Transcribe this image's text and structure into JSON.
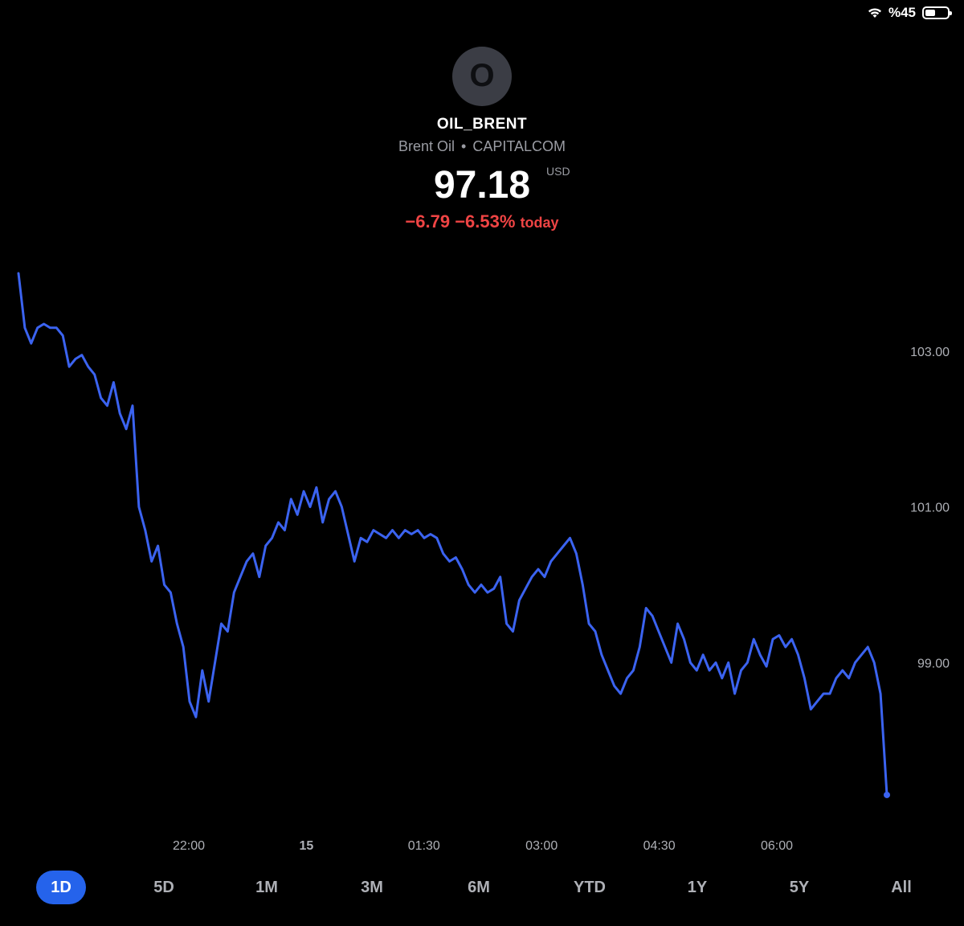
{
  "status_bar": {
    "battery": "%45",
    "battery_level": 0.45
  },
  "header": {
    "logo_letter": "O",
    "symbol": "OIL_BRENT",
    "name": "Brent Oil",
    "exchange": "CAPITALCOM",
    "price": "97.18",
    "currency": "USD",
    "change_abs": "−6.79",
    "change_pct": "−6.53%",
    "change_label": "today"
  },
  "colors": {
    "line": "#3b63f0",
    "negative": "#ef4444",
    "active_range": "#2563eb"
  },
  "chart_data": {
    "type": "line",
    "y_ticks": [
      "103.00",
      "101.00",
      "99.00"
    ],
    "x_ticks": [
      "22:00",
      "15",
      "01:30",
      "03:00",
      "04:30",
      "06:00"
    ],
    "ylim": [
      97.0,
      104.0
    ],
    "series": [
      {
        "values": [
          104.0,
          103.3,
          103.1,
          103.3,
          103.35,
          103.3,
          103.3,
          103.2,
          102.8,
          102.9,
          102.95,
          102.8,
          102.7,
          102.4,
          102.3,
          102.6,
          102.2,
          102.0,
          102.3,
          101.0,
          100.7,
          100.3,
          100.5,
          100.0,
          99.9,
          99.5,
          99.2,
          98.5,
          98.3,
          98.9,
          98.5,
          99.0,
          99.5,
          99.4,
          99.9,
          100.1,
          100.3,
          100.4,
          100.1,
          100.5,
          100.6,
          100.8,
          100.7,
          101.1,
          100.9,
          101.2,
          101.0,
          101.25,
          100.8,
          101.1,
          101.2,
          101.0,
          100.65,
          100.3,
          100.6,
          100.55,
          100.7,
          100.65,
          100.6,
          100.7,
          100.6,
          100.7,
          100.65,
          100.7,
          100.6,
          100.65,
          100.6,
          100.4,
          100.3,
          100.35,
          100.2,
          100.0,
          99.9,
          100.0,
          99.9,
          99.95,
          100.1,
          99.5,
          99.4,
          99.8,
          99.95,
          100.1,
          100.2,
          100.1,
          100.3,
          100.4,
          100.5,
          100.6,
          100.4,
          100.0,
          99.5,
          99.4,
          99.1,
          98.9,
          98.7,
          98.6,
          98.8,
          98.9,
          99.2,
          99.7,
          99.6,
          99.4,
          99.2,
          99.0,
          99.5,
          99.3,
          99.0,
          98.9,
          99.1,
          98.9,
          99.0,
          98.8,
          99.0,
          98.6,
          98.9,
          99.0,
          99.3,
          99.1,
          98.95,
          99.3,
          99.35,
          99.2,
          99.3,
          99.1,
          98.8,
          98.4,
          98.5,
          98.6,
          98.6,
          98.8,
          98.9,
          98.8,
          99.0,
          99.1,
          99.2,
          99.0,
          98.6,
          97.3
        ]
      }
    ]
  },
  "ranges": {
    "items": [
      "1D",
      "5D",
      "1M",
      "3M",
      "6M",
      "YTD",
      "1Y",
      "5Y",
      "All"
    ],
    "selected": "1D"
  }
}
